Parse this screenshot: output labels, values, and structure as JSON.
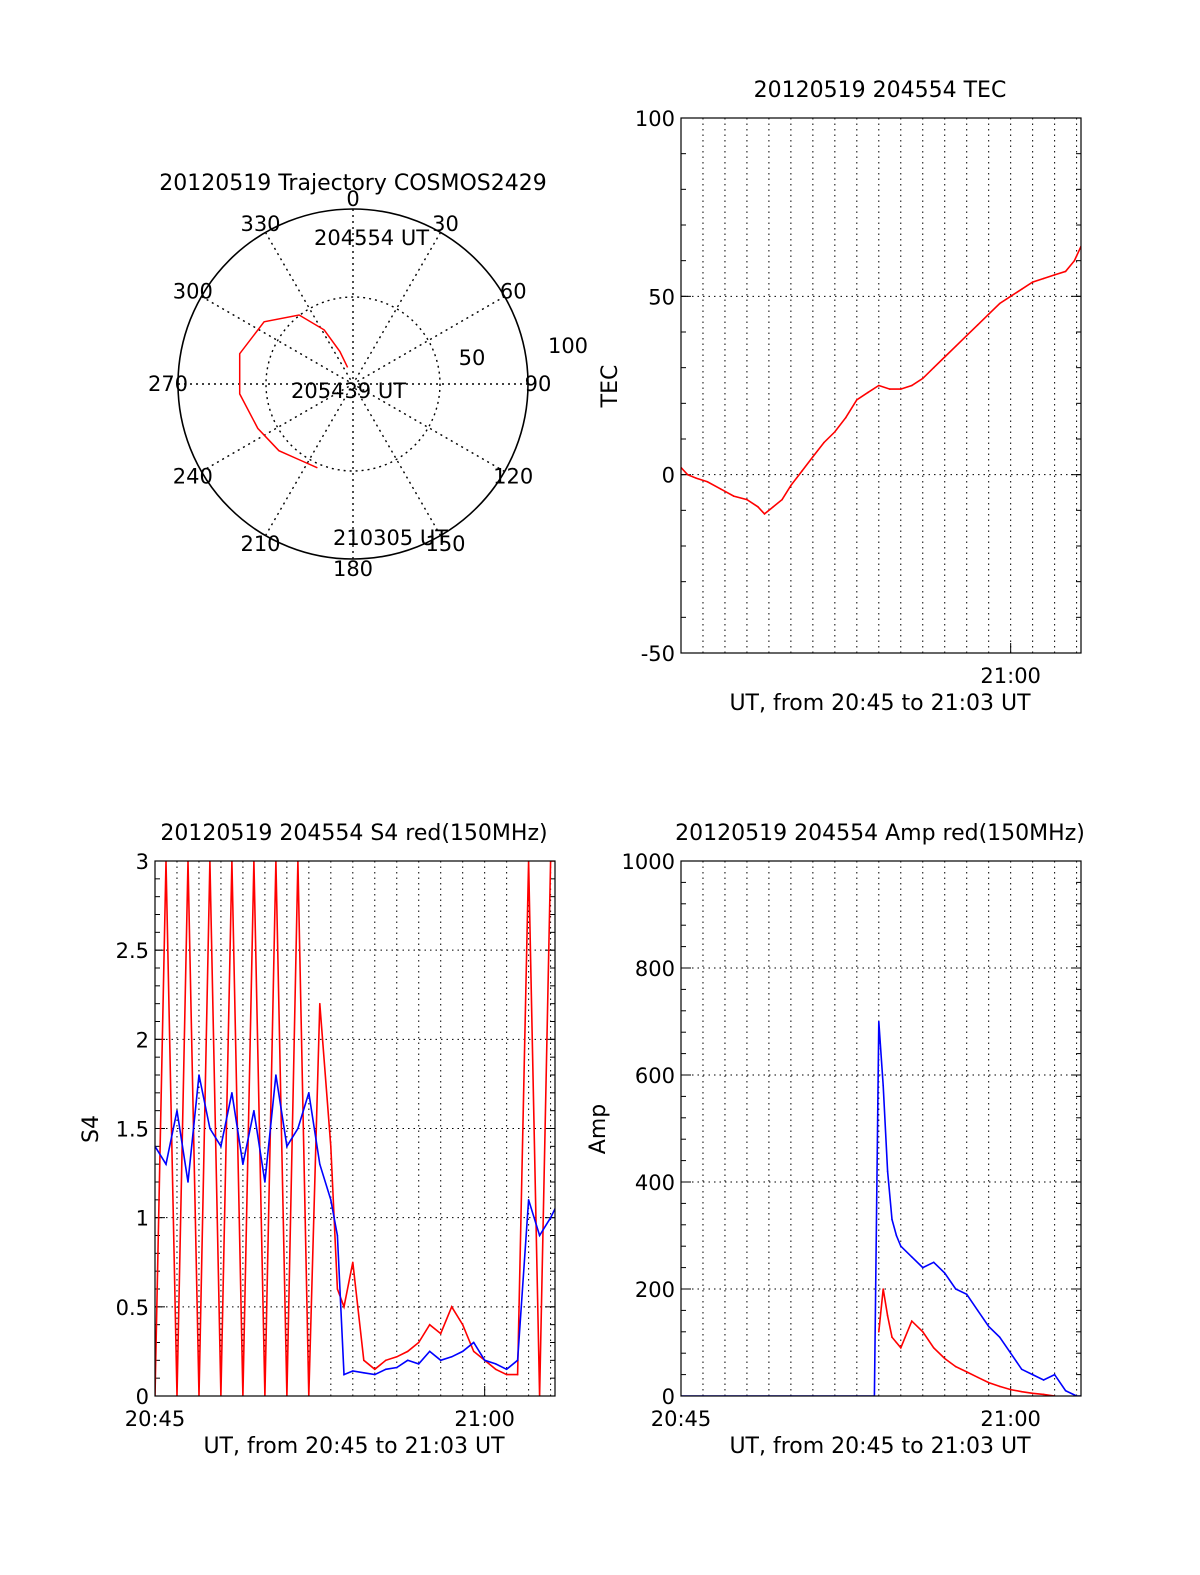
{
  "chart_data": [
    {
      "type": "polar-trajectory",
      "title": "20120519 Trajectory COSMOS2429",
      "azimuth_labels": [
        "0",
        "30",
        "60",
        "90",
        "120",
        "150",
        "180",
        "210",
        "240",
        "270",
        "300",
        "330"
      ],
      "radial_labels": [
        "50",
        "100"
      ],
      "point_labels": [
        "204554 UT",
        "205439 UT",
        "210305 UT"
      ],
      "trajectory": {
        "color": "#ff0000",
        "points": [
          [
            342,
            10
          ],
          [
            338,
            20
          ],
          [
            332,
            35
          ],
          [
            322,
            50
          ],
          [
            305,
            62
          ],
          [
            285,
            67
          ],
          [
            265,
            65
          ],
          [
            245,
            60
          ],
          [
            228,
            57
          ],
          [
            215,
            53
          ],
          [
            203,
            52
          ]
        ]
      }
    },
    {
      "type": "line",
      "title": "20120519 204554 TEC",
      "xlabel": "UT, from 20:45 to 21:03 UT",
      "ylabel": "TEC",
      "xlim": [
        0,
        18.2
      ],
      "ylim": [
        -50,
        100
      ],
      "yticks": [
        "-50",
        "0",
        "50",
        "100"
      ],
      "xticks": [
        {
          "pos": 15,
          "label": "21:00"
        }
      ],
      "grid": true,
      "series": [
        {
          "color": "#ff0000",
          "x": [
            0.0,
            0.3,
            0.7,
            1.2,
            1.8,
            2.4,
            3.0,
            3.5,
            3.8,
            4.2,
            4.6,
            5.0,
            5.5,
            6.0,
            6.5,
            7.0,
            7.5,
            8.0,
            8.5,
            9.0,
            9.5,
            10.0,
            10.5,
            11.0,
            11.5,
            12.0,
            12.5,
            13.0,
            13.5,
            14.0,
            14.5,
            15.0,
            15.5,
            16.0,
            16.5,
            17.0,
            17.5,
            17.9,
            18.2
          ],
          "y": [
            2,
            0,
            -1,
            -2,
            -4,
            -6,
            -7,
            -9,
            -11,
            -9,
            -7,
            -3,
            1,
            5,
            9,
            12,
            16,
            21,
            23,
            25,
            24,
            24,
            25,
            27,
            30,
            33,
            36,
            39,
            42,
            45,
            48,
            50,
            52,
            54,
            55,
            56,
            57,
            60,
            64
          ]
        }
      ]
    },
    {
      "type": "line",
      "title": "20120519 204554 S4 red(150MHz)",
      "xlabel": "UT, from 20:45 to 21:03 UT",
      "ylabel": "S4",
      "xlim": [
        0,
        18.2
      ],
      "ylim": [
        0,
        3
      ],
      "yticks": [
        "0",
        "0.5",
        "1",
        "1.5",
        "2",
        "2.5",
        "3"
      ],
      "xticks": [
        {
          "pos": 0,
          "label": "20:45"
        },
        {
          "pos": 15,
          "label": "21:00"
        }
      ],
      "grid": true,
      "series": [
        {
          "name": "",
          "color": "#ff0000",
          "x": [
            0.0,
            0.5,
            1.0,
            1.5,
            2.0,
            2.5,
            3.0,
            3.5,
            4.0,
            4.5,
            5.0,
            5.5,
            6.0,
            6.5,
            7.0,
            7.5,
            8.0,
            8.3,
            8.6,
            9.0,
            9.5,
            10.0,
            10.5,
            11.0,
            11.5,
            12.0,
            12.5,
            13.0,
            13.5,
            14.0,
            14.5,
            15.0,
            15.5,
            16.0,
            16.5,
            17.0,
            17.5,
            18.0,
            18.2
          ],
          "y": [
            0,
            3,
            0,
            3,
            0,
            3,
            0,
            3,
            0,
            3,
            0,
            3,
            0,
            3,
            0,
            2.2,
            1.4,
            0.6,
            0.5,
            0.75,
            0.2,
            0.15,
            0.2,
            0.22,
            0.25,
            0.3,
            0.4,
            0.35,
            0.5,
            0.4,
            0.25,
            0.2,
            0.15,
            0.12,
            0.12,
            3,
            0,
            3,
            3
          ]
        },
        {
          "name": "",
          "color": "#0000ff",
          "x": [
            0.0,
            0.5,
            1.0,
            1.5,
            2.0,
            2.5,
            3.0,
            3.5,
            4.0,
            4.5,
            5.0,
            5.5,
            6.0,
            6.5,
            7.0,
            7.5,
            8.0,
            8.3,
            8.6,
            9.0,
            9.5,
            10.0,
            10.5,
            11.0,
            11.5,
            12.0,
            12.5,
            13.0,
            13.5,
            14.0,
            14.5,
            15.0,
            15.5,
            16.0,
            16.5,
            17.0,
            17.5,
            18.0,
            18.2
          ],
          "y": [
            1.4,
            1.3,
            1.6,
            1.2,
            1.8,
            1.5,
            1.4,
            1.7,
            1.3,
            1.6,
            1.2,
            1.8,
            1.4,
            1.5,
            1.7,
            1.3,
            1.1,
            0.9,
            0.12,
            0.14,
            0.13,
            0.12,
            0.15,
            0.16,
            0.2,
            0.18,
            0.25,
            0.2,
            0.22,
            0.25,
            0.3,
            0.2,
            0.18,
            0.15,
            0.2,
            1.1,
            0.9,
            1.0,
            1.05
          ]
        }
      ]
    },
    {
      "type": "line",
      "title": "20120519 204554 Amp red(150MHz)",
      "xlabel": "UT, from 20:45 to 21:03 UT",
      "ylabel": "Amp",
      "xlim": [
        0,
        18.2
      ],
      "ylim": [
        0,
        1000
      ],
      "yticks": [
        "0",
        "200",
        "400",
        "600",
        "800",
        "1000"
      ],
      "xticks": [
        {
          "pos": 0,
          "label": "20:45"
        },
        {
          "pos": 15,
          "label": "21:00"
        }
      ],
      "grid": true,
      "series": [
        {
          "name": "",
          "color": "#0000ff",
          "x": [
            0,
            1,
            2,
            3,
            4,
            5,
            6,
            7,
            8,
            8.8,
            9.0,
            9.2,
            9.4,
            9.6,
            9.8,
            10.0,
            10.5,
            11.0,
            11.5,
            12.0,
            12.5,
            13.0,
            13.5,
            14.0,
            14.5,
            15.0,
            15.5,
            16.0,
            16.5,
            17.0,
            17.5,
            18.0,
            18.2
          ],
          "y": [
            0,
            0,
            0,
            0,
            0,
            0,
            0,
            0,
            0,
            0,
            700,
            580,
            420,
            330,
            300,
            280,
            260,
            240,
            250,
            230,
            200,
            190,
            160,
            130,
            110,
            80,
            50,
            40,
            30,
            40,
            10,
            0,
            0
          ]
        },
        {
          "name": "",
          "color": "#ff0000",
          "x": [
            9.0,
            9.2,
            9.4,
            9.6,
            9.8,
            10.0,
            10.5,
            11.0,
            11.5,
            12.0,
            12.5,
            13.0,
            13.5,
            14.0,
            14.5,
            15.0,
            15.5,
            16.0,
            16.5,
            17.0
          ],
          "y": [
            120,
            200,
            150,
            110,
            100,
            90,
            140,
            120,
            90,
            70,
            55,
            45,
            35,
            25,
            18,
            12,
            8,
            5,
            3,
            0
          ]
        }
      ]
    }
  ]
}
